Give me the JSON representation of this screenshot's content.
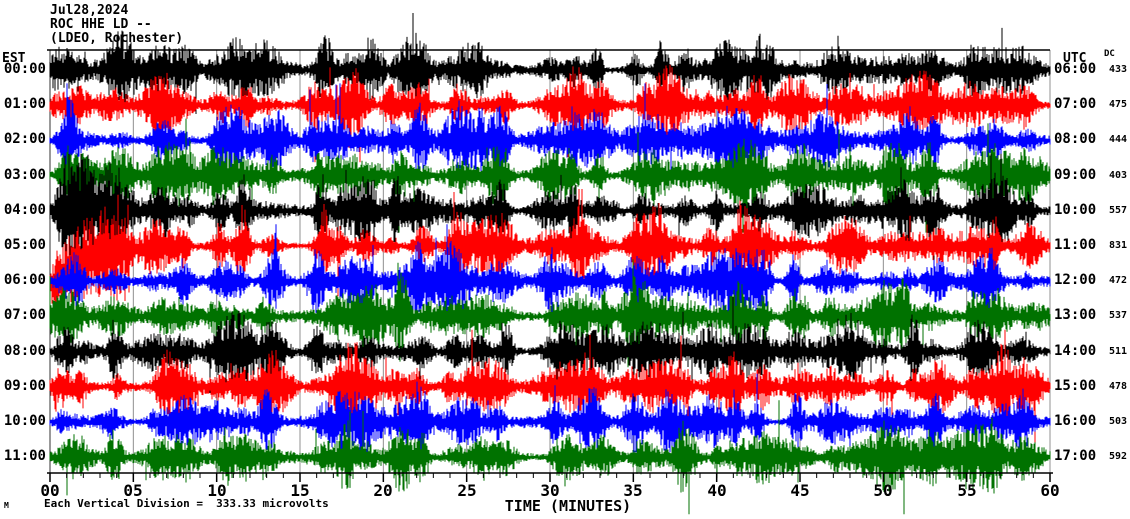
{
  "title": {
    "date": "Jul28,2024",
    "station": "ROC HHE LD --",
    "location": "(LDEO, Rochester)"
  },
  "axes": {
    "left_header": "EST",
    "right_header": "UTC",
    "dc_header": "DC",
    "x_title": "TIME (MINUTES)"
  },
  "footer": {
    "division_note": "Each Vertical Division =  333.33 microvolts",
    "watermark": "M"
  },
  "chart_data": {
    "type": "line",
    "subtype": "helicorder-seismogram",
    "title": "ROC HHE LD -- (LDEO, Rochester) Jul28,2024",
    "xlabel": "TIME (MINUTES)",
    "x_range_minutes": [
      0,
      60
    ],
    "x_tick_step_minutes": 5,
    "x_minor_tick_minutes": 1,
    "x_tick_labels": [
      "00",
      "05",
      "10",
      "15",
      "20",
      "25",
      "30",
      "35",
      "40",
      "45",
      "50",
      "55",
      "60"
    ],
    "grid": "vertical-5min-gray",
    "grid_color": "#909090",
    "trace_colors": {
      "black": "#000000",
      "red": "#ff0000",
      "blue": "#0000ff",
      "green": "#007200"
    },
    "rows": [
      {
        "est": "00:00",
        "utc": "06:00",
        "dc": "433",
        "color": "black"
      },
      {
        "est": "01:00",
        "utc": "07:00",
        "dc": "475",
        "color": "red"
      },
      {
        "est": "02:00",
        "utc": "08:00",
        "dc": "444",
        "color": "blue"
      },
      {
        "est": "03:00",
        "utc": "09:00",
        "dc": "403",
        "color": "green"
      },
      {
        "est": "04:00",
        "utc": "10:00",
        "dc": "557",
        "color": "black"
      },
      {
        "est": "05:00",
        "utc": "11:00",
        "dc": "831",
        "color": "red"
      },
      {
        "est": "06:00",
        "utc": "12:00",
        "dc": "472",
        "color": "blue"
      },
      {
        "est": "07:00",
        "utc": "13:00",
        "dc": "537",
        "color": "green"
      },
      {
        "est": "08:00",
        "utc": "14:00",
        "dc": "511",
        "color": "black"
      },
      {
        "est": "09:00",
        "utc": "15:00",
        "dc": "478",
        "color": "red"
      },
      {
        "est": "10:00",
        "utc": "16:00",
        "dc": "503",
        "color": "blue"
      },
      {
        "est": "11:00",
        "utc": "17:00",
        "dc": "592",
        "color": "green"
      }
    ],
    "burst_minutes": [
      0.8,
      1.8,
      3.9,
      6.5,
      8.1,
      10.3,
      11.6,
      13.2,
      16.3,
      17.6,
      19.0,
      20.8,
      22.3,
      24.3,
      25.7,
      27.1,
      30.2,
      31.5,
      33.0,
      35.4,
      36.7,
      38.0,
      39.8,
      41.3,
      42.6,
      44.9,
      46.8,
      48.2,
      50.2,
      51.5,
      53.0,
      55.5,
      56.8,
      58.6
    ]
  }
}
